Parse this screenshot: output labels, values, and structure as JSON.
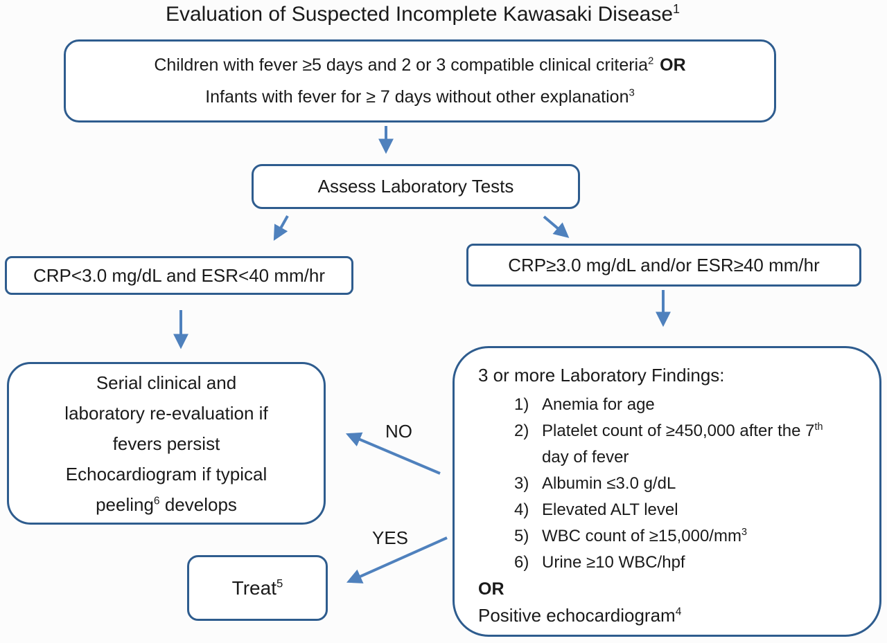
{
  "colors": {
    "box_border": "#2e5c8e",
    "arrow": "#4f81bd",
    "text": "#1a1a1a",
    "background": "#fcfcfc"
  },
  "title": {
    "text": "Evaluation of Suspected Incomplete Kawasaki Disease",
    "sup": "1"
  },
  "entry_box": {
    "line1": "Children with fever ≥5 days and 2 or 3 compatible clinical criteria",
    "line1_sup": "2",
    "line1_or": "OR",
    "line2": "Infants with fever for ≥ 7 days without other explanation",
    "line2_sup": "3"
  },
  "assess_box": {
    "label": "Assess Laboratory Tests"
  },
  "crp_low_box": {
    "label": "CRP<3.0 mg/dL and ESR<40 mm/hr"
  },
  "crp_high_box": {
    "label": "CRP≥3.0 mg/dL and/or ESR≥40 mm/hr"
  },
  "serial_box": {
    "lines": [
      "Serial clinical and",
      "laboratory re-evaluation if",
      "fevers persist",
      "Echocardiogram if typical"
    ],
    "line5_pre": "peeling",
    "line5_sup": "6",
    "line5_post": " develops"
  },
  "findings_box": {
    "heading": "3 or more Laboratory Findings:",
    "items": [
      {
        "num": "1)",
        "pre": "Anemia for age",
        "sup": "",
        "post": ""
      },
      {
        "num": "2)",
        "pre": "Platelet count of ≥450,000 after the 7",
        "sup": "th",
        "post": " day of fever"
      },
      {
        "num": "3)",
        "pre": "Albumin ≤3.0 g/dL",
        "sup": "",
        "post": ""
      },
      {
        "num": "4)",
        "pre": "Elevated ALT level",
        "sup": "",
        "post": ""
      },
      {
        "num": "5)",
        "pre": "WBC count of ≥15,000/mm",
        "sup": "3",
        "post": ""
      },
      {
        "num": "6)",
        "pre": "Urine ≥10 WBC/hpf",
        "sup": "",
        "post": ""
      }
    ],
    "or_label": "OR",
    "footer_pre": "Positive echocardiogram",
    "footer_sup": "4"
  },
  "treat_box": {
    "pre": "Treat",
    "sup": "5"
  },
  "edge_labels": {
    "no": "NO",
    "yes": "YES"
  }
}
